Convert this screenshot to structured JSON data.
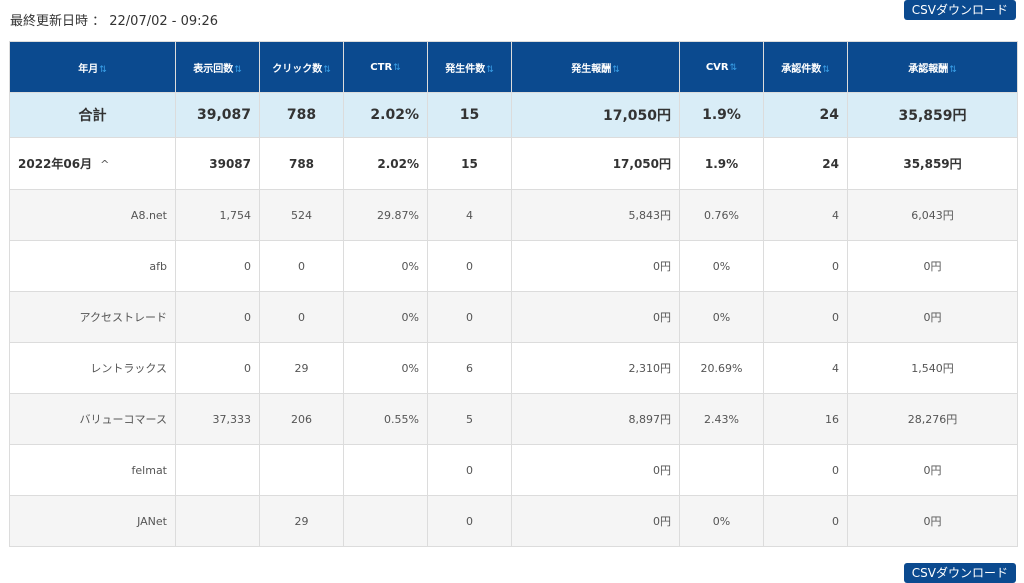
{
  "updated": "最終更新日時 ： 22/07/02 - 09:26",
  "csv_button": "CSVダウンロード",
  "sort_icon": "⇅",
  "headers": [
    "年月",
    "表示回数",
    "クリック数",
    "CTR",
    "発生件数",
    "発生報酬",
    "CVR",
    "承認件数",
    "承認報酬"
  ],
  "total": {
    "label": "合計",
    "values": [
      "39,087",
      "788",
      "2.02%",
      "15",
      "17,050円",
      "1.9%",
      "24",
      "35,859円"
    ]
  },
  "month": {
    "label": "2022年06月",
    "chevron": "^",
    "values": [
      "39087",
      "788",
      "2.02%",
      "15",
      "17,050円",
      "1.9%",
      "24",
      "35,859円"
    ]
  },
  "rows": [
    {
      "label": "A8.net",
      "values": [
        "1,754",
        "524",
        "29.87%",
        "4",
        "5,843円",
        "0.76%",
        "4",
        "6,043円"
      ]
    },
    {
      "label": "afb",
      "values": [
        "0",
        "0",
        "0%",
        "0",
        "0円",
        "0%",
        "0",
        "0円"
      ]
    },
    {
      "label": "アクセストレード",
      "values": [
        "0",
        "0",
        "0%",
        "0",
        "0円",
        "0%",
        "0",
        "0円"
      ]
    },
    {
      "label": "レントラックス",
      "values": [
        "0",
        "29",
        "0%",
        "6",
        "2,310円",
        "20.69%",
        "4",
        "1,540円"
      ]
    },
    {
      "label": "バリューコマース",
      "values": [
        "37,333",
        "206",
        "0.55%",
        "5",
        "8,897円",
        "2.43%",
        "16",
        "28,276円"
      ]
    },
    {
      "label": "felmat",
      "values": [
        "",
        "",
        "",
        "0",
        "0円",
        "",
        "0",
        "0円"
      ]
    },
    {
      "label": "JANet",
      "values": [
        "",
        "29",
        "",
        "0",
        "0円",
        "0%",
        "0",
        "0円"
      ]
    }
  ]
}
